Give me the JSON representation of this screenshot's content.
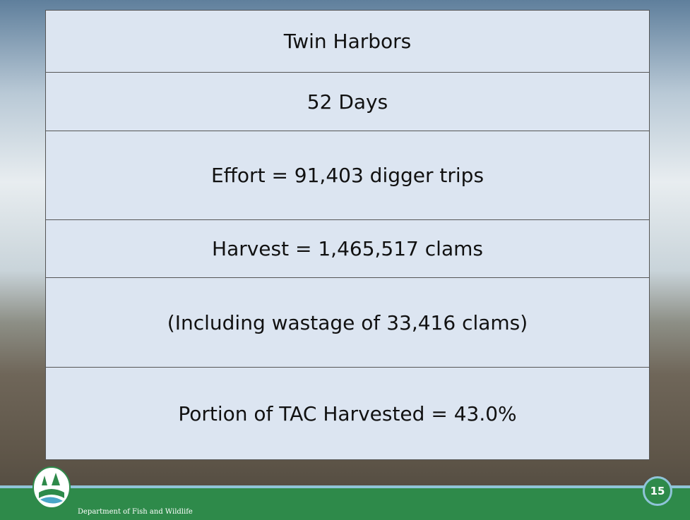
{
  "table": {
    "rows": [
      "Twin Harbors",
      "52 Days",
      "Effort = 91,403 digger trips",
      "Harvest = 1,465,517 clams",
      "(Including wastage of 33,416 clams)",
      "Portion of TAC Harvested = 43.0%"
    ]
  },
  "footer": {
    "organization": "Department of Fish and Wildlife",
    "page_number": "15"
  }
}
